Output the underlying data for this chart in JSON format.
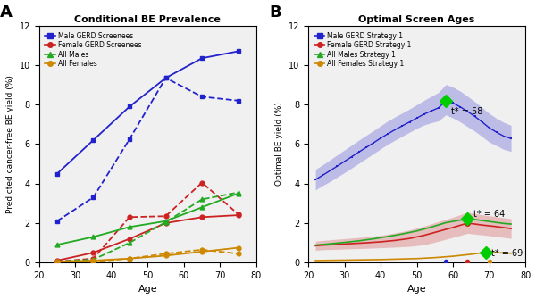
{
  "panel_A": {
    "title": "Conditional BE Prevalence",
    "ylabel": "Predicted cancer-free BE yield (%)",
    "xlabel": "Age",
    "ylim": [
      0,
      12
    ],
    "xlim": [
      20,
      80
    ],
    "yticks": [
      0,
      2,
      4,
      6,
      8,
      10,
      12
    ],
    "xticks": [
      20,
      30,
      40,
      50,
      60,
      70,
      80
    ],
    "male_gerd_solid_x": [
      25,
      35,
      45,
      55,
      65,
      75
    ],
    "male_gerd_solid_y": [
      4.5,
      6.2,
      7.9,
      9.35,
      10.35,
      10.7
    ],
    "male_gerd_dashed_x": [
      25,
      35,
      45,
      55,
      65,
      75
    ],
    "male_gerd_dashed_y": [
      2.1,
      3.3,
      6.25,
      9.35,
      8.4,
      8.2
    ],
    "female_gerd_solid_x": [
      25,
      35,
      45,
      55,
      65,
      75
    ],
    "female_gerd_solid_y": [
      0.1,
      0.5,
      1.2,
      2.0,
      2.3,
      2.4
    ],
    "female_gerd_dashed_x": [
      25,
      35,
      45,
      55,
      65,
      75
    ],
    "female_gerd_dashed_y": [
      0.05,
      0.2,
      2.3,
      2.35,
      4.05,
      2.45
    ],
    "all_males_solid_x": [
      25,
      35,
      45,
      55,
      65,
      75
    ],
    "all_males_solid_y": [
      0.9,
      1.3,
      1.8,
      2.1,
      2.8,
      3.5
    ],
    "all_males_dashed_x": [
      25,
      35,
      45,
      55,
      65,
      75
    ],
    "all_males_dashed_y": [
      0.05,
      0.15,
      1.0,
      2.05,
      3.2,
      3.55
    ],
    "all_females_solid_x": [
      25,
      35,
      45,
      55,
      65,
      75
    ],
    "all_females_solid_y": [
      0.05,
      0.1,
      0.2,
      0.35,
      0.55,
      0.75
    ],
    "all_females_dashed_x": [
      25,
      35,
      45,
      55,
      65,
      75
    ],
    "all_females_dashed_y": [
      0.02,
      0.05,
      0.2,
      0.45,
      0.65,
      0.45
    ],
    "colors": {
      "blue": "#2222CC",
      "red": "#CC2222",
      "green": "#22AA22",
      "orange": "#CC8800"
    },
    "legend": [
      "Male GERD Screenees",
      "Female GERD Screenees",
      "All Males",
      "All Females"
    ]
  },
  "panel_B": {
    "title": "Optimal Screen Ages",
    "ylabel": "Optimal BE yield (%)",
    "xlabel": "Age",
    "ylim": [
      0,
      12
    ],
    "xlim": [
      20,
      80
    ],
    "yticks": [
      0,
      2,
      4,
      6,
      8,
      10,
      12
    ],
    "xticks": [
      20,
      30,
      40,
      50,
      60,
      70,
      80
    ],
    "male_gerd_x": [
      22,
      24,
      26,
      28,
      30,
      32,
      34,
      36,
      38,
      40,
      42,
      44,
      46,
      48,
      50,
      52,
      54,
      56,
      58,
      60,
      62,
      64,
      66,
      68,
      70,
      72,
      74,
      76
    ],
    "male_gerd_y": [
      4.2,
      4.42,
      4.65,
      4.88,
      5.12,
      5.36,
      5.6,
      5.83,
      6.06,
      6.3,
      6.52,
      6.73,
      6.93,
      7.12,
      7.32,
      7.52,
      7.68,
      7.84,
      8.2,
      8.08,
      7.88,
      7.65,
      7.4,
      7.12,
      6.82,
      6.6,
      6.4,
      6.28
    ],
    "male_gerd_upper": [
      4.72,
      4.95,
      5.2,
      5.45,
      5.7,
      5.95,
      6.2,
      6.44,
      6.68,
      6.93,
      7.17,
      7.38,
      7.58,
      7.78,
      8.0,
      8.22,
      8.42,
      8.62,
      9.02,
      8.88,
      8.68,
      8.42,
      8.15,
      7.85,
      7.55,
      7.3,
      7.1,
      6.95
    ],
    "male_gerd_lower": [
      3.68,
      3.9,
      4.1,
      4.33,
      4.55,
      4.79,
      5.03,
      5.27,
      5.51,
      5.76,
      5.99,
      6.2,
      6.4,
      6.6,
      6.8,
      6.97,
      7.08,
      7.18,
      7.48,
      7.32,
      7.12,
      6.88,
      6.65,
      6.38,
      6.1,
      5.92,
      5.73,
      5.63
    ],
    "male_gerd_peak_x": 58,
    "male_gerd_peak_y": 8.2,
    "male_gerd_label": "t* = 58",
    "female_gerd_x": [
      22,
      24,
      28,
      32,
      36,
      40,
      44,
      48,
      52,
      56,
      60,
      64,
      68,
      72,
      76
    ],
    "female_gerd_y": [
      0.85,
      0.88,
      0.92,
      0.96,
      1.0,
      1.05,
      1.12,
      1.22,
      1.38,
      1.58,
      1.78,
      2.0,
      1.9,
      1.82,
      1.72
    ],
    "female_gerd_upper": [
      1.08,
      1.12,
      1.18,
      1.24,
      1.3,
      1.38,
      1.5,
      1.65,
      1.85,
      2.08,
      2.3,
      2.55,
      2.42,
      2.32,
      2.22
    ],
    "female_gerd_lower": [
      0.62,
      0.65,
      0.67,
      0.7,
      0.72,
      0.75,
      0.78,
      0.82,
      0.9,
      1.08,
      1.28,
      1.48,
      1.4,
      1.32,
      1.22
    ],
    "female_gerd_peak_x": 64,
    "female_gerd_peak_y": 2.0,
    "all_males_x": [
      22,
      26,
      30,
      34,
      38,
      42,
      46,
      50,
      54,
      58,
      62,
      64,
      66,
      70,
      74,
      76
    ],
    "all_males_y": [
      0.88,
      0.95,
      1.02,
      1.1,
      1.2,
      1.32,
      1.45,
      1.6,
      1.8,
      2.02,
      2.15,
      2.22,
      2.18,
      2.08,
      1.98,
      1.95
    ],
    "all_males_peak_x": 64,
    "all_males_peak_y": 2.22,
    "all_males_label": "t* = 64",
    "all_females_x": [
      22,
      30,
      40,
      50,
      55,
      60,
      65,
      69,
      72,
      76
    ],
    "all_females_y": [
      0.1,
      0.12,
      0.15,
      0.2,
      0.25,
      0.32,
      0.42,
      0.52,
      0.5,
      0.47
    ],
    "all_females_peak_x": 69,
    "all_females_peak_y": 0.52,
    "all_females_label": "t* = 69",
    "bottom_dot_blue_x": 58,
    "bottom_dot_red_x": 64,
    "bottom_dot_orange_x": 70,
    "bottom_dot_y": 0.05,
    "colors": {
      "blue": "#2222CC",
      "red": "#CC2222",
      "green": "#22AA22",
      "orange": "#CC8800"
    },
    "legend": [
      "Male GERD Strategy 1",
      "Female GERD Strategy 1",
      "All Males Strategy 1",
      "All Females Strategy 1"
    ]
  }
}
